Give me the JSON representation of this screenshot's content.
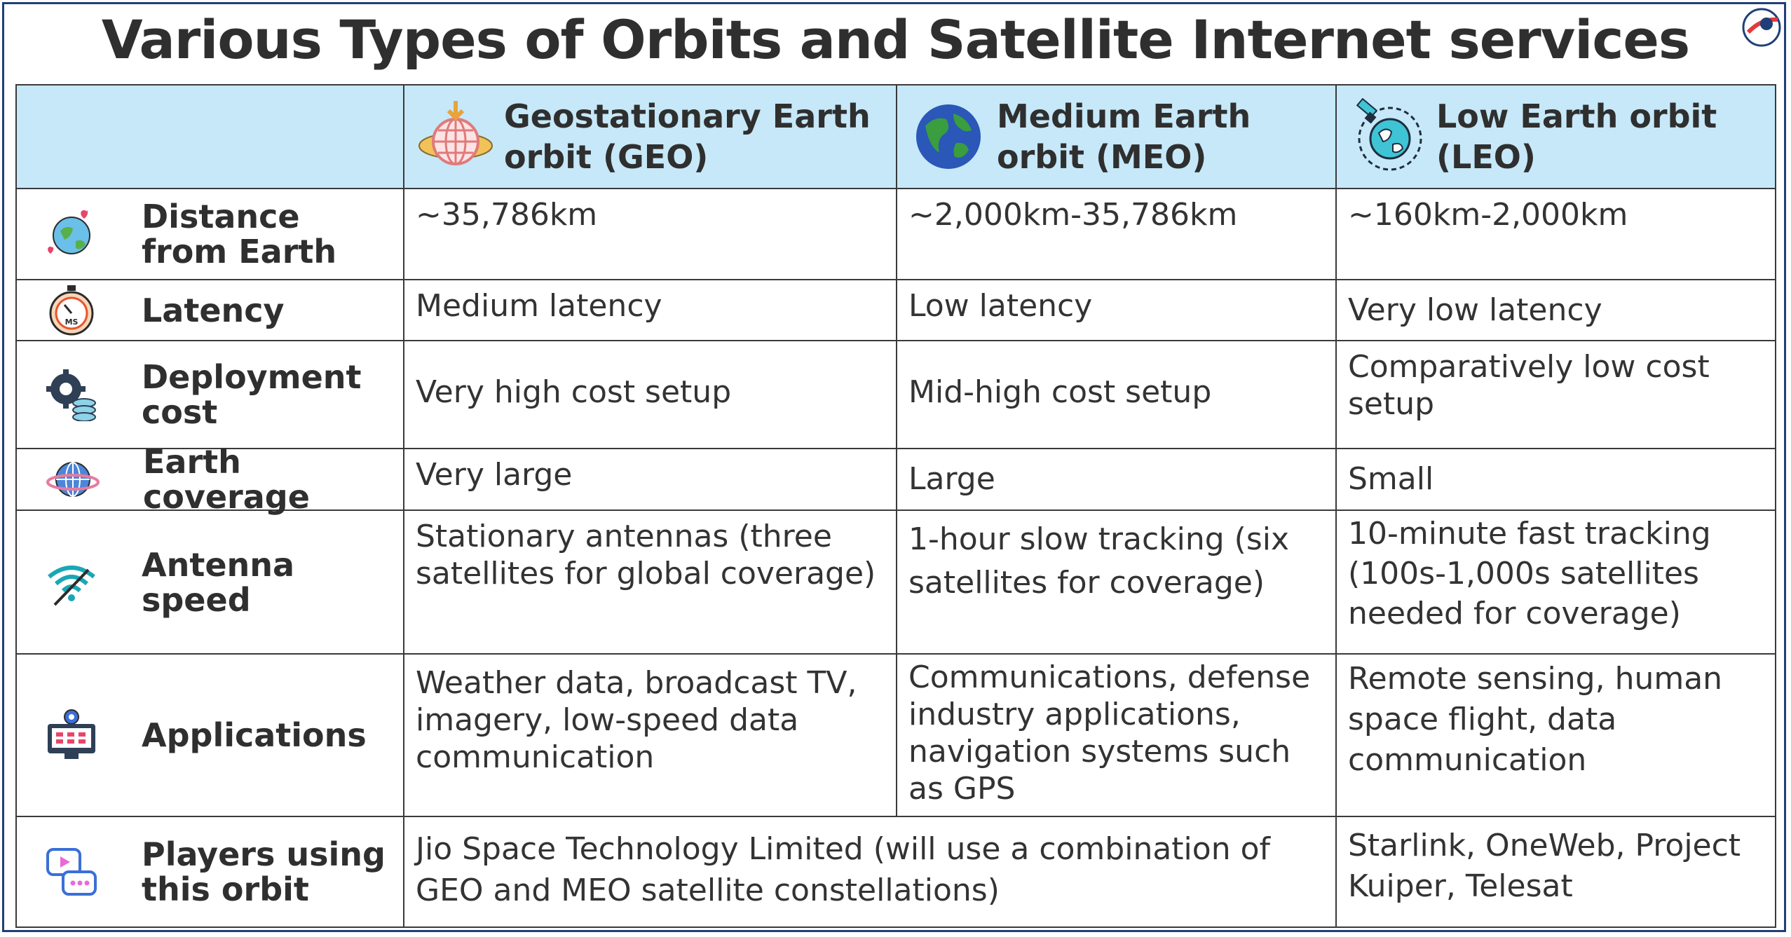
{
  "title": "Various Types of Orbits and Satellite Internet services",
  "colors": {
    "header_bg": "#c6e8f8",
    "border": "#3a3a3a",
    "frame": "#1f3f7a",
    "title": "#2f2f2f"
  },
  "columns": [
    {
      "label": "Geostationary Earth orbit (GEO)",
      "icon": "geo-globe-ring-icon"
    },
    {
      "label": "Medium Earth orbit (MEO)",
      "icon": "earth-globe-icon"
    },
    {
      "label": "Low Earth orbit (LEO)",
      "icon": "satellite-orbit-icon"
    }
  ],
  "rows": [
    {
      "label": "Distance from Earth",
      "icon": "earth-hearts-icon",
      "geo": "~35,786km",
      "meo": "~2,000km-35,786km",
      "leo": "~160km-2,000km"
    },
    {
      "label": "Latency",
      "icon": "stopwatch-ms-icon",
      "geo": "Medium latency",
      "meo": "Low latency",
      "leo": "Very low latency"
    },
    {
      "label": "Deployment cost",
      "icon": "gear-coins-icon",
      "geo": "Very high cost setup",
      "meo": "Mid-high cost setup",
      "leo": "Comparatively low cost setup"
    },
    {
      "label": "Earth coverage",
      "icon": "ringed-globe-icon",
      "geo": "Very large",
      "meo": "Large",
      "leo": "Small"
    },
    {
      "label": "Antenna speed",
      "icon": "wifi-signal-icon",
      "geo": "Stationary antennas (three satellites for global coverage)",
      "meo": "1-hour slow tracking (six satellites for coverage)",
      "leo": "10-minute fast tracking (100s-1,000s satellites needed for coverage)"
    },
    {
      "label": "Applications",
      "icon": "monitor-gear-icon",
      "geo": "Weather data, broadcast TV, imagery, low-speed data communication",
      "meo": "Communications, defense industry applications, navigation systems such as GPS",
      "leo": "Remote sensing, human space flight, data communication"
    }
  ],
  "players": {
    "label": "Players using this orbit",
    "icon": "chat-video-icon",
    "geo_meo": "Jio Space Technology Limited (will use a combination of GEO and MEO satellite constellations)",
    "leo": "Starlink, OneWeb, Project Kuiper, Telesat"
  }
}
